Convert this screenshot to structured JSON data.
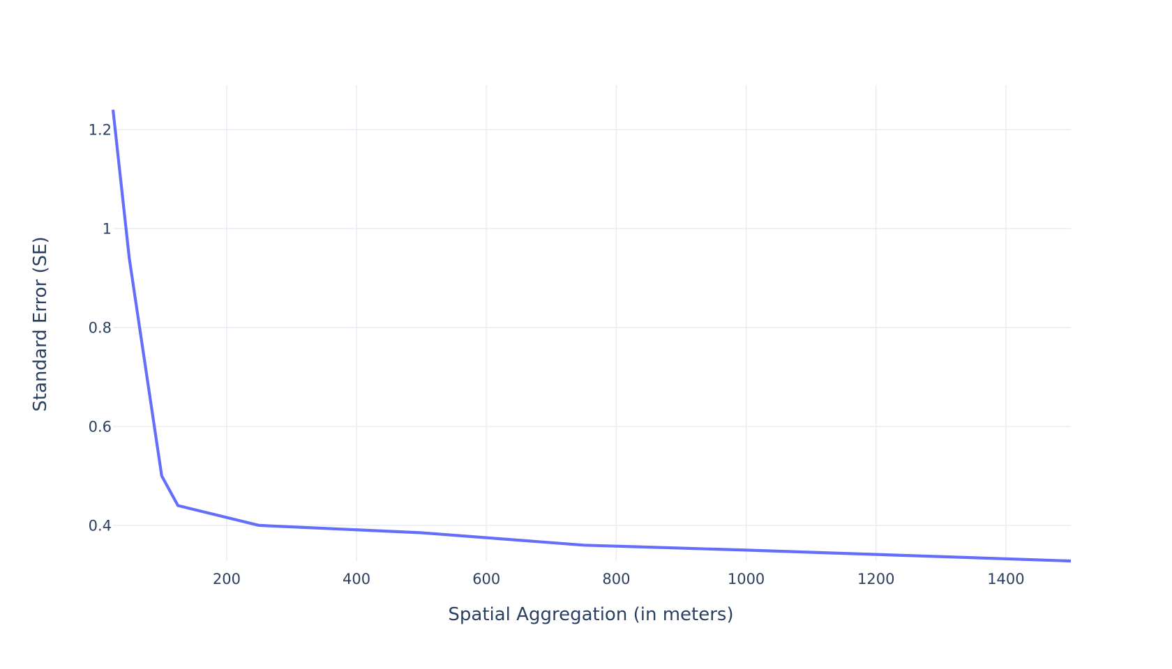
{
  "chart_data": {
    "type": "line",
    "title": "",
    "xlabel": "Spatial Aggregation (in meters)",
    "ylabel": "Standard Error (SE)",
    "xlim": [
      25,
      1500
    ],
    "ylim": [
      0.328,
      1.29
    ],
    "x_ticks": [
      200,
      400,
      600,
      800,
      1000,
      1200,
      1400
    ],
    "x_tick_labels": [
      "200",
      "400",
      "600",
      "800",
      "1000",
      "1200",
      "1400"
    ],
    "y_ticks": [
      0.4,
      0.6,
      0.8,
      1.0,
      1.2
    ],
    "y_tick_labels": [
      "0.4",
      "0.6",
      "0.8",
      "1",
      "1.2"
    ],
    "grid": true,
    "legend": "none",
    "colors": {
      "series": "#636efa",
      "grid": "#e8eef5",
      "text": "#2a3f5f",
      "background": "#ffffff"
    },
    "series": [
      {
        "x": [
          25,
          50,
          100,
          125,
          250,
          500,
          750,
          1000,
          1500
        ],
        "values": [
          1.24,
          0.94,
          0.5,
          0.44,
          0.4,
          0.385,
          0.36,
          0.35,
          0.328
        ]
      }
    ]
  }
}
